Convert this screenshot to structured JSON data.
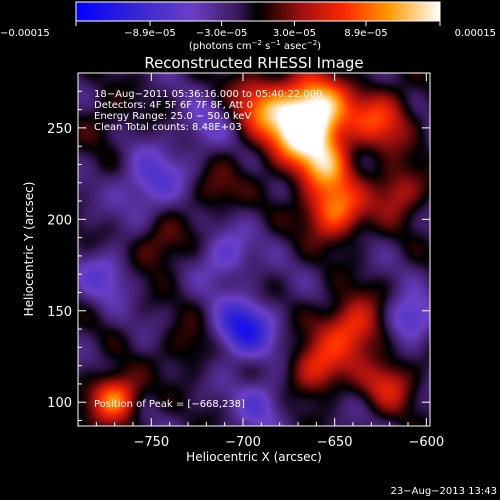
{
  "chart_data": {
    "type": "heatmap",
    "title": "Reconstructed RHESSI Image",
    "xlabel": "Heliocentric X (arcsec)",
    "ylabel": "Heliocentric Y (arcsec)",
    "xlim": [
      -790,
      -598
    ],
    "ylim": [
      87,
      280
    ],
    "x_ticks": [
      -750,
      -700,
      -650,
      -600
    ],
    "y_ticks": [
      100,
      150,
      200,
      250
    ],
    "x_tick_labels": [
      "−750",
      "−700",
      "−650",
      "−600"
    ],
    "y_tick_labels": [
      "100",
      "150",
      "200",
      "250"
    ],
    "colorbar": {
      "range": [
        -0.00015,
        0.00015
      ],
      "ticks": [
        -0.00015,
        -8.9e-05,
        -3e-05,
        3e-05,
        8.9e-05,
        0.00015
      ],
      "tick_labels": [
        "−0.00015",
        "−8.9e−05",
        "−3.0e−05",
        "3.0e−05",
        "8.9e−05",
        "0.00015"
      ],
      "units_text": "(photons cm",
      "units_exp1": "−2",
      "units_mid": " s",
      "units_exp2": "−1",
      "units_mid2": " asec",
      "units_exp3": "−2",
      "units_close": ")"
    },
    "info_lines": [
      "18−Aug−2011 05:36:16.000 to 05:40:22.000",
      "Detectors: 4F 5F 6F 7F 8F, Att 0",
      "Energy Range: 25.0 − 50.0 keV",
      "Clean    Total counts: 8.48E+03"
    ],
    "peak_label": "Position of Peak = [−668,238]",
    "peak_position": [
      -668,
      238
    ],
    "blobs": [
      {
        "x": -667,
        "y": 248,
        "amp": 1.15,
        "s": 14
      },
      {
        "x": -660,
        "y": 262,
        "amp": 0.8,
        "s": 12
      },
      {
        "x": -690,
        "y": 262,
        "amp": 0.6,
        "s": 12
      },
      {
        "x": -650,
        "y": 205,
        "amp": 0.85,
        "s": 11
      },
      {
        "x": -655,
        "y": 228,
        "amp": 0.6,
        "s": 10
      },
      {
        "x": -625,
        "y": 255,
        "amp": 0.6,
        "s": 12
      },
      {
        "x": -615,
        "y": 215,
        "amp": 0.5,
        "s": 10
      },
      {
        "x": -640,
        "y": 140,
        "amp": 0.7,
        "s": 12
      },
      {
        "x": -660,
        "y": 118,
        "amp": 0.6,
        "s": 10
      },
      {
        "x": -620,
        "y": 110,
        "amp": 0.5,
        "s": 10
      },
      {
        "x": -770,
        "y": 102,
        "amp": 0.9,
        "s": 9
      },
      {
        "x": -745,
        "y": 185,
        "amp": 0.35,
        "s": 10
      },
      {
        "x": -715,
        "y": 215,
        "amp": 0.3,
        "s": 9
      },
      {
        "x": -775,
        "y": 255,
        "amp": 0.2,
        "s": 10
      },
      {
        "x": -730,
        "y": 130,
        "amp": 0.25,
        "s": 10
      },
      {
        "x": -700,
        "y": 140,
        "amp": -0.75,
        "s": 11
      },
      {
        "x": -710,
        "y": 180,
        "amp": -0.4,
        "s": 10
      },
      {
        "x": -750,
        "y": 220,
        "amp": -0.45,
        "s": 12
      },
      {
        "x": -775,
        "y": 170,
        "amp": -0.35,
        "s": 10
      },
      {
        "x": -690,
        "y": 100,
        "amp": -0.35,
        "s": 10
      },
      {
        "x": -610,
        "y": 145,
        "amp": -0.55,
        "s": 9
      },
      {
        "x": -720,
        "y": 250,
        "amp": -0.3,
        "s": 10
      }
    ]
  },
  "footer": {
    "timestamp": "23−Aug−2013 13:43"
  }
}
